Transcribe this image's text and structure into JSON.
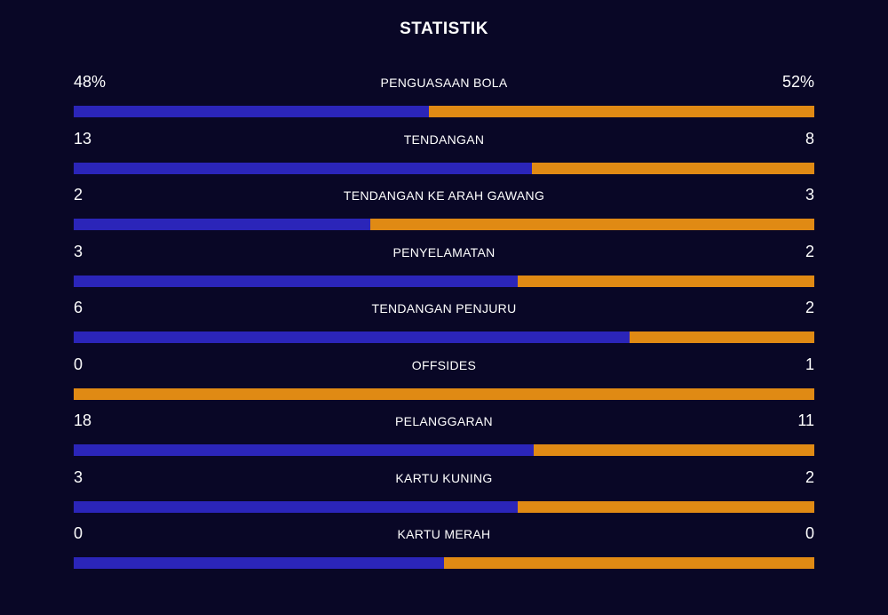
{
  "title": "STATISTIK",
  "colors": {
    "background": "#090726",
    "home": "#2b25b9",
    "away": "#e08a14"
  },
  "stats": [
    {
      "label": "PENGUASAAN BOLA",
      "home": "48%",
      "away": "52%",
      "home_value": 48,
      "away_value": 52
    },
    {
      "label": "TENDANGAN",
      "home": "13",
      "away": "8",
      "home_value": 13,
      "away_value": 8
    },
    {
      "label": "TENDANGAN KE ARAH GAWANG",
      "home": "2",
      "away": "3",
      "home_value": 2,
      "away_value": 3
    },
    {
      "label": "PENYELAMATAN",
      "home": "3",
      "away": "2",
      "home_value": 3,
      "away_value": 2
    },
    {
      "label": "TENDANGAN PENJURU",
      "home": "6",
      "away": "2",
      "home_value": 6,
      "away_value": 2
    },
    {
      "label": "OFFSIDES",
      "home": "0",
      "away": "1",
      "home_value": 0,
      "away_value": 1
    },
    {
      "label": "PELANGGARAN",
      "home": "18",
      "away": "11",
      "home_value": 18,
      "away_value": 11
    },
    {
      "label": "KARTU KUNING",
      "home": "3",
      "away": "2",
      "home_value": 3,
      "away_value": 2
    },
    {
      "label": "KARTU MERAH",
      "home": "0",
      "away": "0",
      "home_value": 0,
      "away_value": 0
    }
  ]
}
